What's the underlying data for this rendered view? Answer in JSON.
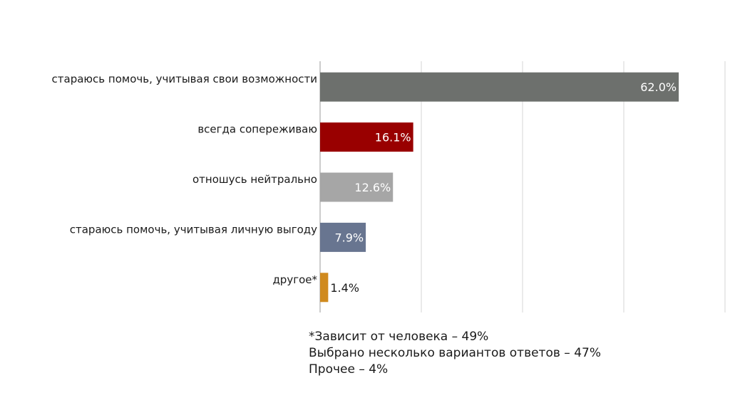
{
  "chart_data": {
    "type": "bar",
    "orientation": "horizontal",
    "categories": [
      "стараюсь помочь, учитывая свои возможности",
      "всегда сопереживаю",
      "отношусь нейтрально",
      "стараюсь помочь, учитывая личную выгоду",
      "другое*"
    ],
    "values": [
      62.0,
      16.1,
      12.6,
      7.9,
      1.4
    ],
    "value_labels": [
      "62.0%",
      "16.1%",
      "12.6%",
      "7.9%",
      "1.4%"
    ],
    "colors": [
      "#6d706d",
      "#990000",
      "#a6a6a6",
      "#687590",
      "#d08a1e"
    ],
    "value_label_colors": [
      "#ffffff",
      "#ffffff",
      "#ffffff",
      "#ffffff",
      "#1a1a1a"
    ],
    "xlim": [
      0,
      70
    ],
    "grid_step": 17.5,
    "grid": true,
    "title": "",
    "xlabel": "",
    "ylabel": ""
  },
  "footnote": {
    "line1": "*Зависит от человека  – 49%",
    "line2": "Выбрано несколько вариантов ответов – 47%",
    "line3": "Прочее – 4%"
  }
}
